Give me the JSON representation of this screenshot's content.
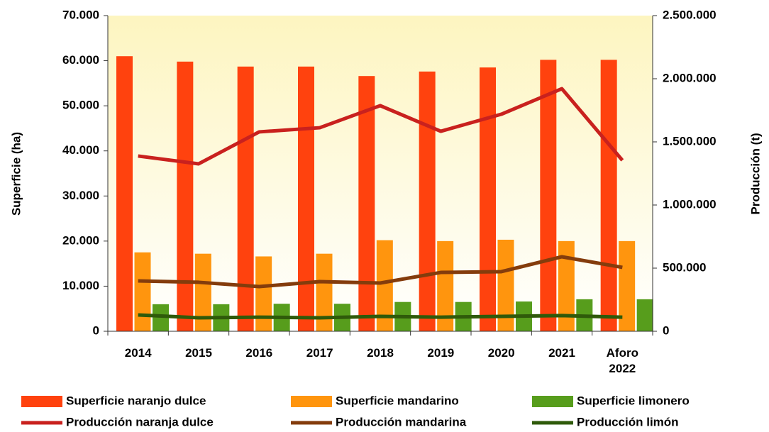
{
  "chart_data": {
    "type": "bar",
    "categories": [
      "2014",
      "2015",
      "2016",
      "2017",
      "2018",
      "2019",
      "2020",
      "2021",
      "Aforo 2022"
    ],
    "y_label": "Superficie (ha)",
    "y2_label": "Producción (t)",
    "ylim": [
      0,
      70000
    ],
    "yticks": [
      {
        "value": 0,
        "label": "0"
      },
      {
        "value": 10000,
        "label": "10.000"
      },
      {
        "value": 20000,
        "label": "20.000"
      },
      {
        "value": 30000,
        "label": "30.000"
      },
      {
        "value": 40000,
        "label": "40.000"
      },
      {
        "value": 50000,
        "label": "50.000"
      },
      {
        "value": 60000,
        "label": "60.000"
      },
      {
        "value": 70000,
        "label": "70.000"
      }
    ],
    "y2lim": [
      0,
      2500000
    ],
    "y2ticks": [
      {
        "value": 0,
        "label": "0"
      },
      {
        "value": 500000,
        "label": "500.000"
      },
      {
        "value": 1000000,
        "label": "1.000.000"
      },
      {
        "value": 1500000,
        "label": "1.500.000"
      },
      {
        "value": 2000000,
        "label": "2.000.000"
      },
      {
        "value": 2500000,
        "label": "2.500.000"
      }
    ],
    "grid": false,
    "legend": "bottom",
    "series": [
      {
        "name": "Superficie naranjo dulce",
        "type": "bar",
        "color": "#ff420e",
        "values": [
          61000,
          59800,
          58700,
          58700,
          56600,
          57600,
          58500,
          60200,
          60200
        ]
      },
      {
        "name": "Superficie mandarino",
        "type": "bar",
        "color": "#ff950e",
        "values": [
          17500,
          17200,
          16600,
          17200,
          20200,
          20000,
          20300,
          20000,
          20000
        ]
      },
      {
        "name": "Superficie limonero",
        "type": "bar",
        "color": "#579d1c",
        "values": [
          6000,
          6000,
          6100,
          6100,
          6500,
          6500,
          6600,
          7100,
          7100
        ]
      },
      {
        "name": "Producción naranja dulce",
        "type": "line",
        "axis": "y2",
        "color": "#c9211e",
        "values": [
          1388000,
          1326000,
          1579000,
          1612000,
          1787000,
          1584000,
          1719000,
          1921000,
          1354000
        ]
      },
      {
        "name": "Producción mandarina",
        "type": "line",
        "axis": "y2",
        "color": "#843c0c",
        "values": [
          399000,
          388000,
          354000,
          393000,
          382000,
          466000,
          472000,
          590000,
          506000
        ]
      },
      {
        "name": "Producción limón",
        "type": "line",
        "axis": "y2",
        "color": "#2f5a0a",
        "values": [
          129000,
          107000,
          112000,
          107000,
          118000,
          112000,
          118000,
          124000,
          112000
        ]
      }
    ]
  }
}
